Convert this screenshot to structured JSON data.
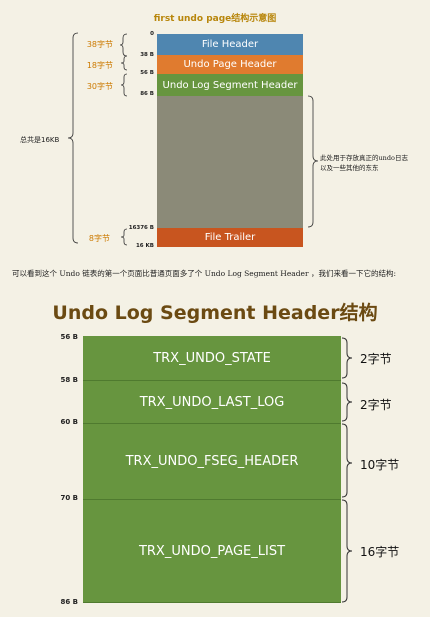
{
  "top_diagram": {
    "title": "first undo page结构示意图",
    "segments": [
      {
        "label": "File Header",
        "color": "#4f86b0"
      },
      {
        "label": "Undo Page Header",
        "color": "#e07b2f"
      },
      {
        "label": "Undo Log Segment Header",
        "color": "#67953f"
      },
      {
        "label": "",
        "color": "#8b8a78"
      },
      {
        "label": "File Trailer",
        "color": "#c8551f"
      }
    ],
    "offsets": [
      "0",
      "38 B",
      "56 B",
      "86 B",
      "16376 B",
      "16 KB"
    ],
    "sizes": [
      "38字节",
      "18字节",
      "30字节",
      "8字节"
    ],
    "total_label": "总共是16KB",
    "desc_lines": [
      "此处用于存放真正的undo日志",
      "以及一些其他的东东"
    ]
  },
  "caption": "可以看到这个 Undo 链表的第一个页面比普通页面多了个 Undo Log Segment Header ，我们来看一下它的结构:",
  "bottom_diagram": {
    "title": "Undo Log Segment Header结构",
    "fields": [
      {
        "label": "TRX_UNDO_STATE",
        "size": "2字节"
      },
      {
        "label": "TRX_UNDO_LAST_LOG",
        "size": "2字节"
      },
      {
        "label": "TRX_UNDO_FSEG_HEADER",
        "size": "10字节"
      },
      {
        "label": "TRX_UNDO_PAGE_LIST",
        "size": "16字节"
      }
    ],
    "offsets": [
      "56 B",
      "58 B",
      "60 B",
      "70 B",
      "86 B"
    ]
  }
}
